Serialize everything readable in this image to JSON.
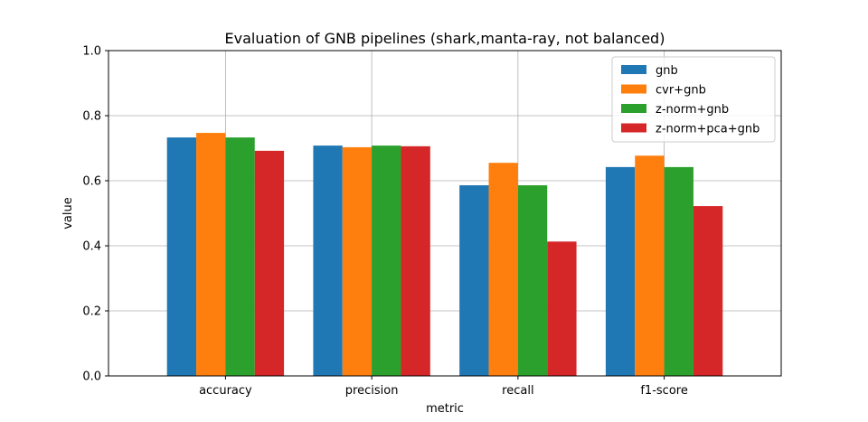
{
  "chart_data": {
    "type": "bar",
    "title": "Evaluation of GNB pipelines (shark,manta-ray, not balanced)",
    "xlabel": "metric",
    "ylabel": "value",
    "ylim": [
      0,
      1.0
    ],
    "yticks": [
      "0.0",
      "0.2",
      "0.4",
      "0.6",
      "0.8",
      "1.0"
    ],
    "categories": [
      "accuracy",
      "precision",
      "recall",
      "f1-score"
    ],
    "grid": true,
    "legend_position": "top-right",
    "series": [
      {
        "name": "gnb",
        "color": "#1f77b4",
        "values": [
          0.733,
          0.708,
          0.586,
          0.642
        ]
      },
      {
        "name": "cvr+gnb",
        "color": "#ff7f0e",
        "values": [
          0.747,
          0.703,
          0.655,
          0.677
        ]
      },
      {
        "name": "z-norm+gnb",
        "color": "#2ca02c",
        "values": [
          0.733,
          0.708,
          0.586,
          0.642
        ]
      },
      {
        "name": "z-norm+pca+gnb",
        "color": "#d62728",
        "values": [
          0.692,
          0.706,
          0.413,
          0.522
        ]
      }
    ]
  }
}
